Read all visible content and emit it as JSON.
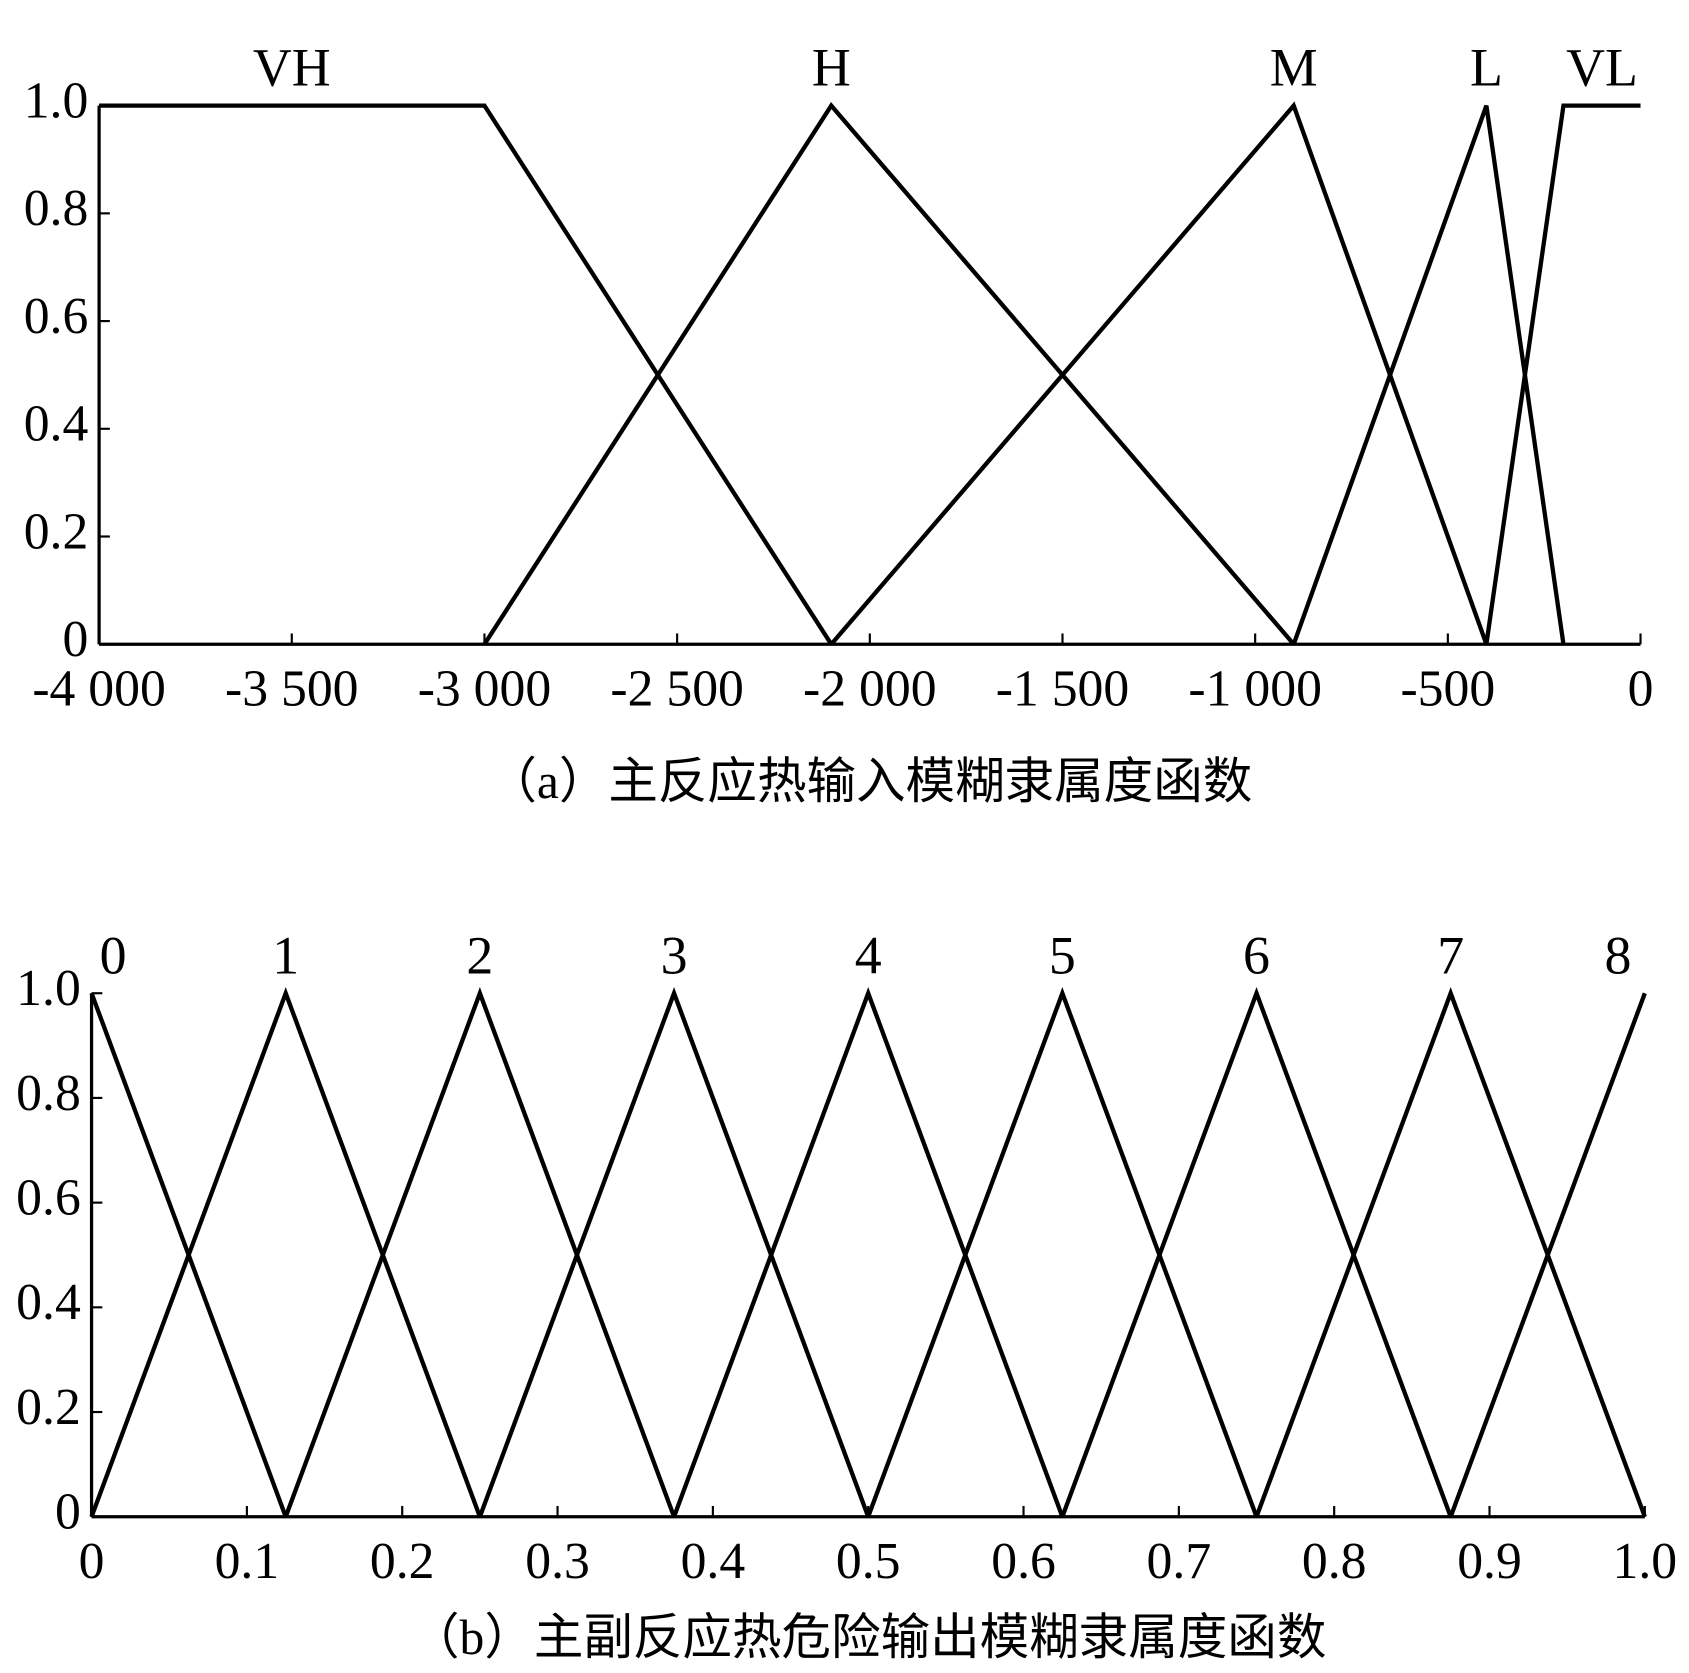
{
  "chart_data": [
    {
      "type": "line",
      "title": "（a）主反应热输入模糊隶属度函数",
      "xlim": [
        -4000,
        0
      ],
      "ylim": [
        0,
        1
      ],
      "xticks": [
        {
          "value": -4000,
          "label": "-4 000"
        },
        {
          "value": -3500,
          "label": "-3 500"
        },
        {
          "value": -3000,
          "label": "-3 000"
        },
        {
          "value": -2500,
          "label": "-2 500"
        },
        {
          "value": -2000,
          "label": "-2 000"
        },
        {
          "value": -1500,
          "label": "-1 500"
        },
        {
          "value": -1000,
          "label": "-1 000"
        },
        -500,
        0
      ],
      "yticks": [
        0,
        0.2,
        0.4,
        0.6,
        0.8,
        {
          "value": 1,
          "label": "1.0"
        }
      ],
      "series": [
        {
          "name": "VH",
          "color": "#000000",
          "x": [
            -4000,
            -3000,
            -2100
          ],
          "values": [
            1,
            1,
            0
          ]
        },
        {
          "name": "H",
          "color": "#000000",
          "x": [
            -3000,
            -2100,
            -900
          ],
          "values": [
            0,
            1,
            0
          ]
        },
        {
          "name": "M",
          "color": "#000000",
          "x": [
            -2100,
            -900,
            -400
          ],
          "values": [
            0,
            1,
            0
          ]
        },
        {
          "name": "L",
          "color": "#000000",
          "x": [
            -900,
            -400,
            -200
          ],
          "values": [
            0,
            1,
            0
          ]
        },
        {
          "name": "VL",
          "color": "#000000",
          "x": [
            -400,
            -200,
            0
          ],
          "values": [
            0,
            1,
            1
          ]
        }
      ]
    },
    {
      "type": "line",
      "title": "（b）主副反应热危险输出模糊隶属度函数",
      "xlim": [
        0,
        1
      ],
      "ylim": [
        0,
        1
      ],
      "xticks": [
        0,
        0.1,
        0.2,
        0.3,
        0.4,
        0.5,
        0.6,
        0.7,
        0.8,
        0.9,
        {
          "value": 1,
          "label": "1.0"
        }
      ],
      "yticks": [
        0,
        0.2,
        0.4,
        0.6,
        0.8,
        {
          "value": 1,
          "label": "1.0"
        }
      ],
      "series": [
        {
          "name": "0",
          "color": "#000000",
          "x": [
            0,
            0.125
          ],
          "values": [
            1,
            0
          ]
        },
        {
          "name": "1",
          "color": "#000000",
          "x": [
            0,
            0.125,
            0.25
          ],
          "values": [
            0,
            1,
            0
          ]
        },
        {
          "name": "2",
          "color": "#000000",
          "x": [
            0.125,
            0.25,
            0.375
          ],
          "values": [
            0,
            1,
            0
          ]
        },
        {
          "name": "3",
          "color": "#000000",
          "x": [
            0.25,
            0.375,
            0.5
          ],
          "values": [
            0,
            1,
            0
          ]
        },
        {
          "name": "4",
          "color": "#000000",
          "x": [
            0.375,
            0.5,
            0.625
          ],
          "values": [
            0,
            1,
            0
          ]
        },
        {
          "name": "5",
          "color": "#000000",
          "x": [
            0.5,
            0.625,
            0.75
          ],
          "values": [
            0,
            1,
            0
          ]
        },
        {
          "name": "6",
          "color": "#000000",
          "x": [
            0.625,
            0.75,
            0.875
          ],
          "values": [
            0,
            1,
            0
          ]
        },
        {
          "name": "7",
          "color": "#000000",
          "x": [
            0.75,
            0.875,
            1
          ],
          "values": [
            0,
            1,
            0
          ]
        },
        {
          "name": "8",
          "color": "#000000",
          "x": [
            0.875,
            1
          ],
          "values": [
            0,
            1
          ]
        }
      ]
    }
  ]
}
